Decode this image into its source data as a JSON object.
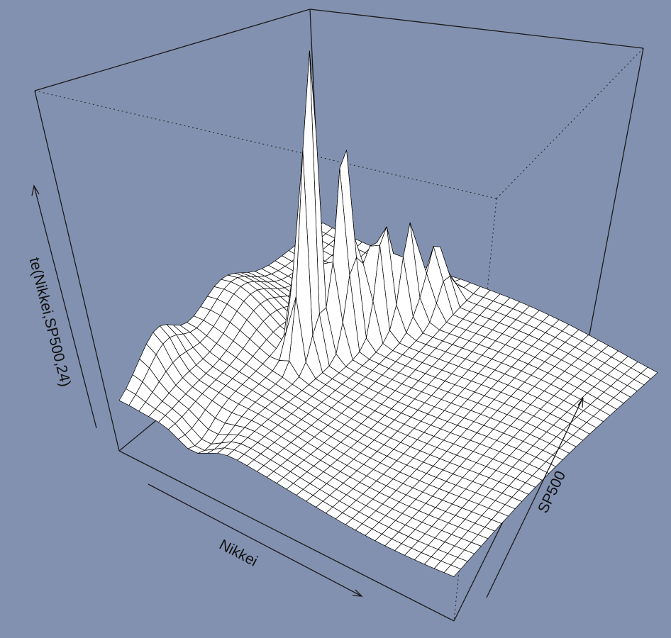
{
  "chart_data": {
    "type": "surface3d",
    "xlabel": "Nikkei",
    "ylabel": "SP500",
    "zlabel": "te(Nikkei,SP500,24)",
    "surface_color": "#ffffff",
    "line_color": "#000000",
    "background": "#8291b0",
    "box": true,
    "grid": false
  }
}
